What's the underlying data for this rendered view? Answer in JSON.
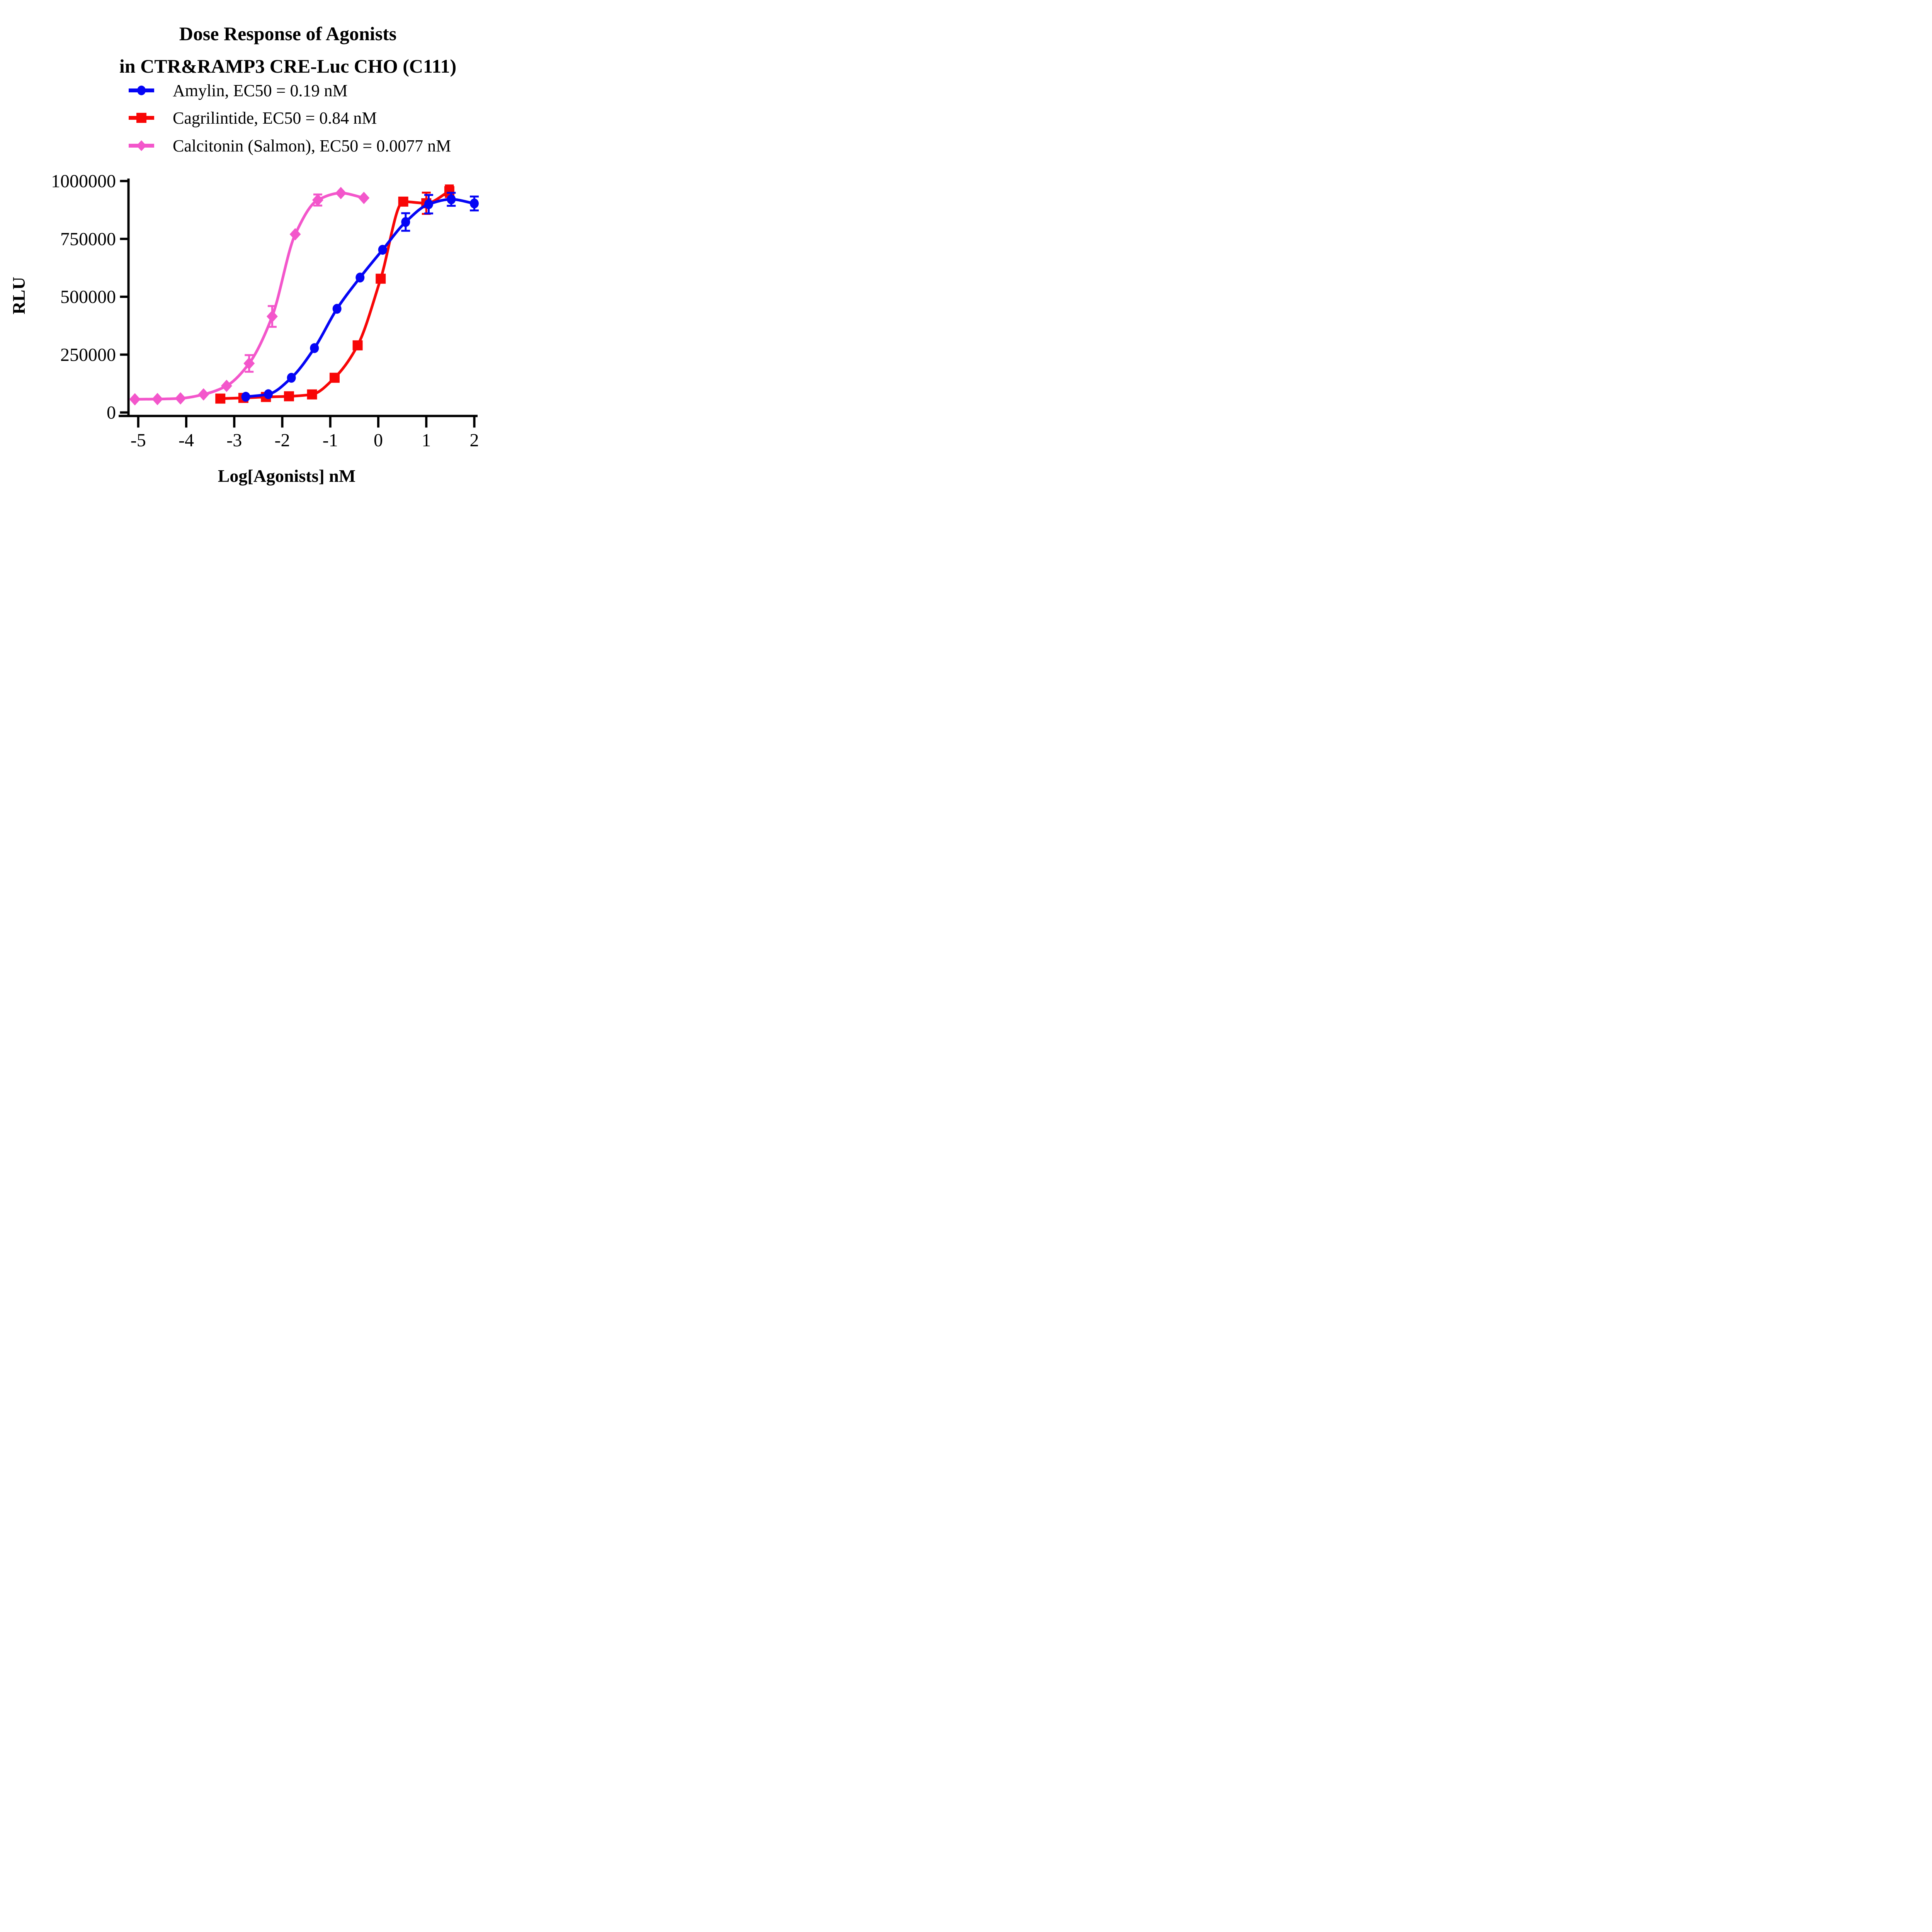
{
  "chart_data": {
    "type": "scatter",
    "title": {
      "line1": "Dose Response of Agonists",
      "line2": "in CTR&RAMP3 CRE-Luc CHO (C111)"
    },
    "xlabel": "Log[Agonists] nM",
    "ylabel": "RLU",
    "xlim": [
      -5.45,
      2.35
    ],
    "ylim": [
      0,
      1000000
    ],
    "grid": false,
    "legend_position": "top-left-above-plot",
    "x_ticks": [
      {
        "value": -5,
        "label": "-5"
      },
      {
        "value": -4,
        "label": "-4"
      },
      {
        "value": -3,
        "label": "-3"
      },
      {
        "value": -2,
        "label": "-2"
      },
      {
        "value": -1,
        "label": "-1"
      },
      {
        "value": 0,
        "label": "0"
      },
      {
        "value": 1,
        "label": "1"
      },
      {
        "value": 2,
        "label": "2"
      }
    ],
    "y_ticks": [
      {
        "value": 0,
        "label": "0"
      },
      {
        "value": 250000,
        "label": "250000"
      },
      {
        "value": 500000,
        "label": "500000"
      },
      {
        "value": 750000,
        "label": "750000"
      },
      {
        "value": 1000000,
        "label": "1000000"
      }
    ],
    "series": [
      {
        "key": "amylin",
        "name": "Amylin, EC50 = 0.19 nM",
        "ec50_nm": 0.19,
        "color": "#0505F5",
        "marker": "circle",
        "x": [
          -2.76,
          -2.29,
          -1.81,
          -1.33,
          -0.86,
          -0.38,
          0.09,
          0.57,
          1.05,
          1.52,
          2.0
        ],
        "y": [
          68000,
          79000,
          150000,
          278000,
          448000,
          583000,
          703000,
          823000,
          900000,
          921000,
          903000
        ],
        "err": [
          0,
          0,
          0,
          0,
          0,
          0,
          0,
          38000,
          40000,
          28000,
          30000
        ]
      },
      {
        "key": "cagrilintide",
        "name": "Cagrilintide, EC50 = 0.84 nM",
        "ec50_nm": 0.84,
        "color": "#F80606",
        "marker": "square",
        "x": [
          -3.29,
          -2.81,
          -2.34,
          -1.86,
          -1.38,
          -0.91,
          -0.43,
          0.05,
          0.52,
          1.0,
          1.48
        ],
        "y": [
          60000,
          63000,
          67000,
          70000,
          78000,
          150000,
          290000,
          578000,
          911000,
          904000,
          956000
        ],
        "err": [
          0,
          0,
          0,
          0,
          0,
          0,
          0,
          0,
          0,
          46000,
          25000
        ]
      },
      {
        "key": "calcitonin",
        "name": "Calcitonin (Salmon), EC50 = 0.0077 nM",
        "ec50_nm": 0.0077,
        "color": "#F356CB",
        "marker": "diamond",
        "x": [
          -5.07,
          -4.6,
          -4.12,
          -3.64,
          -3.16,
          -2.69,
          -2.21,
          -1.73,
          -1.26,
          -0.78,
          -0.3
        ],
        "y": [
          57000,
          58000,
          61000,
          78000,
          115000,
          212000,
          415000,
          770000,
          918000,
          948000,
          927000
        ],
        "err": [
          0,
          0,
          0,
          0,
          0,
          36000,
          45000,
          0,
          24000,
          0,
          0
        ]
      }
    ],
    "draw_order": [
      1,
      0,
      2
    ],
    "axis_color": "#000000",
    "background_color": "#FFFFFF"
  }
}
